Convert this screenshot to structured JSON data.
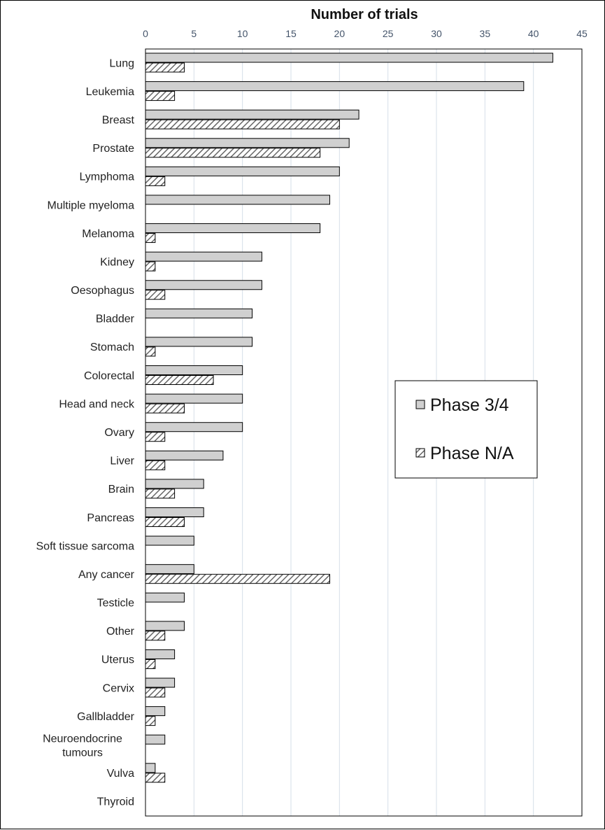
{
  "chart_data": {
    "type": "bar",
    "orientation": "horizontal",
    "title": "Number of trials",
    "xlabel": "",
    "ylabel": "",
    "xlim": [
      0,
      45
    ],
    "x_ticks": [
      "0",
      "5",
      "10",
      "15",
      "20",
      "25",
      "30",
      "35",
      "40",
      "45"
    ],
    "x_axis_position": "top",
    "grid": true,
    "legend_position": "right",
    "categories": [
      "Lung",
      "Leukemia",
      "Breast",
      "Prostate",
      "Lymphoma",
      "Multiple myeloma",
      "Melanoma",
      "Kidney",
      "Oesophagus",
      "Bladder",
      "Stomach",
      "Colorectal",
      "Head and neck",
      "Ovary",
      "Liver",
      "Brain",
      "Pancreas",
      "Soft tissue sarcoma",
      "Any cancer",
      "Testicle",
      "Other",
      "Uterus",
      "Cervix",
      "Gallbladder",
      "Neuroendocrine tumours",
      "Vulva",
      "Thyroid"
    ],
    "category_lines": [
      [
        "Lung"
      ],
      [
        "Leukemia"
      ],
      [
        "Breast"
      ],
      [
        "Prostate"
      ],
      [
        "Lymphoma"
      ],
      [
        "Multiple myeloma"
      ],
      [
        "Melanoma"
      ],
      [
        "Kidney"
      ],
      [
        "Oesophagus"
      ],
      [
        "Bladder"
      ],
      [
        "Stomach"
      ],
      [
        "Colorectal"
      ],
      [
        "Head and neck"
      ],
      [
        "Ovary"
      ],
      [
        "Liver"
      ],
      [
        "Brain"
      ],
      [
        "Pancreas"
      ],
      [
        "Soft tissue sarcoma"
      ],
      [
        "Any cancer"
      ],
      [
        "Testicle"
      ],
      [
        "Other"
      ],
      [
        "Uterus"
      ],
      [
        "Cervix"
      ],
      [
        "Gallbladder"
      ],
      [
        "Neuroendocrine",
        "tumours"
      ],
      [
        "Vulva"
      ],
      [
        "Thyroid"
      ]
    ],
    "series": [
      {
        "name": "Phase 3/4",
        "fill": "#d0d0d0",
        "values": [
          42,
          39,
          22,
          21,
          20,
          19,
          18,
          12,
          12,
          11,
          11,
          10,
          10,
          10,
          8,
          6,
          6,
          5,
          5,
          4,
          4,
          3,
          3,
          2,
          2,
          1,
          0
        ]
      },
      {
        "name": "Phase N/A",
        "fill": "hatched",
        "values": [
          4,
          3,
          20,
          18,
          2,
          0,
          1,
          1,
          2,
          0,
          1,
          7,
          4,
          2,
          2,
          3,
          4,
          0,
          19,
          0,
          2,
          1,
          2,
          1,
          0,
          2,
          0
        ]
      }
    ],
    "colors": {
      "bar_outline": "#000000",
      "gridline": "#d6dfe8",
      "hatch": "#666666",
      "tick_label": "#44546a"
    }
  }
}
